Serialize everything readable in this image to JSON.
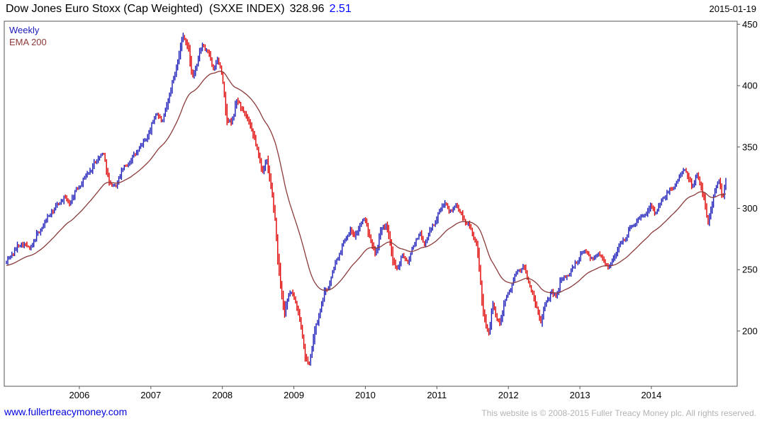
{
  "header": {
    "title": "Dow Jones Euro Stoxx (Cap Weighted)  (SXXE INDEX)",
    "price": "328.96",
    "change": "2.51",
    "date": "2015-01-19"
  },
  "legend": {
    "series1": "Weekly",
    "series2": "EMA 200"
  },
  "footer": {
    "site_link": "www.fullertreacymoney.com",
    "copyright": "This website is © 2008-2015 Fuller Treacy Money plc. All rights reserved."
  },
  "colors": {
    "up_bar": "#1a1ab8",
    "down_bar": "#e00000",
    "ema_line": "#8b3a3a",
    "change_text": "#0000ff",
    "link": "#0000dd",
    "border": "#555555",
    "copyright_text": "#b3b3b3"
  },
  "chart_data": {
    "type": "line",
    "subtype": "weekly-ohlc-bars-with-ema-overlay",
    "title": "Dow Jones Euro Stoxx (Cap Weighted) (SXXE INDEX)",
    "last_price": 328.96,
    "last_change": 2.51,
    "as_of_date": "2015-01-19",
    "frequency": "Weekly",
    "overlay": "EMA 200",
    "xlabel": "",
    "ylabel": "",
    "grid": false,
    "legend_position": "top-left-inside",
    "x_ticks": [
      2006,
      2007,
      2008,
      2009,
      2010,
      2011,
      2012,
      2013,
      2014
    ],
    "y_ticks": [
      450,
      400,
      350,
      300,
      250,
      200
    ],
    "x_range": [
      2004.95,
      2015.2
    ],
    "y_range": [
      155,
      452.5
    ],
    "series": [
      {
        "name": "Weekly",
        "style": "ohlc-bars",
        "anchors": [
          [
            2004.98,
            256
          ],
          [
            2005.06,
            263
          ],
          [
            2005.14,
            269
          ],
          [
            2005.22,
            272
          ],
          [
            2005.3,
            266
          ],
          [
            2005.4,
            277
          ],
          [
            2005.5,
            287
          ],
          [
            2005.6,
            296
          ],
          [
            2005.7,
            303
          ],
          [
            2005.78,
            309
          ],
          [
            2005.86,
            304
          ],
          [
            2005.95,
            314
          ],
          [
            2006.05,
            323
          ],
          [
            2006.15,
            331
          ],
          [
            2006.25,
            340
          ],
          [
            2006.33,
            346
          ],
          [
            2006.42,
            321
          ],
          [
            2006.5,
            317
          ],
          [
            2006.58,
            329
          ],
          [
            2006.68,
            337
          ],
          [
            2006.78,
            344
          ],
          [
            2006.88,
            352
          ],
          [
            2006.98,
            362
          ],
          [
            2007.08,
            379
          ],
          [
            2007.16,
            369
          ],
          [
            2007.25,
            391
          ],
          [
            2007.33,
            409
          ],
          [
            2007.4,
            427
          ],
          [
            2007.46,
            442
          ],
          [
            2007.52,
            431
          ],
          [
            2007.58,
            406
          ],
          [
            2007.65,
            419
          ],
          [
            2007.72,
            433
          ],
          [
            2007.8,
            428
          ],
          [
            2007.87,
            413
          ],
          [
            2007.93,
            421
          ],
          [
            2008.0,
            409
          ],
          [
            2008.06,
            372
          ],
          [
            2008.13,
            369
          ],
          [
            2008.2,
            388
          ],
          [
            2008.28,
            381
          ],
          [
            2008.36,
            371
          ],
          [
            2008.44,
            359
          ],
          [
            2008.5,
            344
          ],
          [
            2008.56,
            331
          ],
          [
            2008.62,
            338
          ],
          [
            2008.7,
            311
          ],
          [
            2008.74,
            289
          ],
          [
            2008.78,
            256
          ],
          [
            2008.82,
            237
          ],
          [
            2008.87,
            214
          ],
          [
            2008.92,
            229
          ],
          [
            2008.97,
            233
          ],
          [
            2009.03,
            221
          ],
          [
            2009.1,
            204
          ],
          [
            2009.16,
            179
          ],
          [
            2009.21,
            171
          ],
          [
            2009.28,
            196
          ],
          [
            2009.35,
            213
          ],
          [
            2009.42,
            229
          ],
          [
            2009.5,
            239
          ],
          [
            2009.56,
            251
          ],
          [
            2009.63,
            263
          ],
          [
            2009.7,
            272
          ],
          [
            2009.78,
            283
          ],
          [
            2009.85,
            277
          ],
          [
            2009.92,
            286
          ],
          [
            2010.0,
            291
          ],
          [
            2010.08,
            273
          ],
          [
            2010.14,
            263
          ],
          [
            2010.22,
            281
          ],
          [
            2010.3,
            288
          ],
          [
            2010.38,
            257
          ],
          [
            2010.46,
            252
          ],
          [
            2010.52,
            263
          ],
          [
            2010.6,
            256
          ],
          [
            2010.68,
            272
          ],
          [
            2010.76,
            279
          ],
          [
            2010.83,
            271
          ],
          [
            2010.9,
            281
          ],
          [
            2010.97,
            289
          ],
          [
            2011.05,
            298
          ],
          [
            2011.12,
            307
          ],
          [
            2011.18,
            296
          ],
          [
            2011.25,
            303
          ],
          [
            2011.32,
            297
          ],
          [
            2011.4,
            289
          ],
          [
            2011.48,
            283
          ],
          [
            2011.55,
            271
          ],
          [
            2011.6,
            247
          ],
          [
            2011.64,
            221
          ],
          [
            2011.68,
            206
          ],
          [
            2011.73,
            196
          ],
          [
            2011.78,
            223
          ],
          [
            2011.83,
            211
          ],
          [
            2011.88,
            206
          ],
          [
            2011.93,
            221
          ],
          [
            2012.0,
            231
          ],
          [
            2012.08,
            243
          ],
          [
            2012.15,
            250
          ],
          [
            2012.22,
            252
          ],
          [
            2012.3,
            237
          ],
          [
            2012.38,
            221
          ],
          [
            2012.45,
            208
          ],
          [
            2012.52,
            221
          ],
          [
            2012.6,
            233
          ],
          [
            2012.66,
            227
          ],
          [
            2012.73,
            241
          ],
          [
            2012.8,
            244
          ],
          [
            2012.88,
            249
          ],
          [
            2012.95,
            256
          ],
          [
            2013.03,
            263
          ],
          [
            2013.1,
            266
          ],
          [
            2013.17,
            257
          ],
          [
            2013.25,
            264
          ],
          [
            2013.32,
            259
          ],
          [
            2013.4,
            251
          ],
          [
            2013.48,
            261
          ],
          [
            2013.55,
            269
          ],
          [
            2013.63,
            276
          ],
          [
            2013.7,
            283
          ],
          [
            2013.78,
            289
          ],
          [
            2013.86,
            293
          ],
          [
            2013.93,
            297
          ],
          [
            2014.0,
            303
          ],
          [
            2014.07,
            296
          ],
          [
            2014.15,
            307
          ],
          [
            2014.22,
            312
          ],
          [
            2014.3,
            317
          ],
          [
            2014.38,
            323
          ],
          [
            2014.45,
            333
          ],
          [
            2014.51,
            325
          ],
          [
            2014.57,
            318
          ],
          [
            2014.63,
            327
          ],
          [
            2014.69,
            319
          ],
          [
            2014.74,
            307
          ],
          [
            2014.79,
            286
          ],
          [
            2014.85,
            305
          ],
          [
            2014.9,
            317
          ],
          [
            2014.95,
            323
          ],
          [
            2015.0,
            309
          ],
          [
            2015.06,
            329
          ]
        ]
      },
      {
        "name": "EMA 200",
        "style": "line",
        "derived": "ema-of-weekly-closes",
        "span_weeks": 40
      }
    ]
  }
}
